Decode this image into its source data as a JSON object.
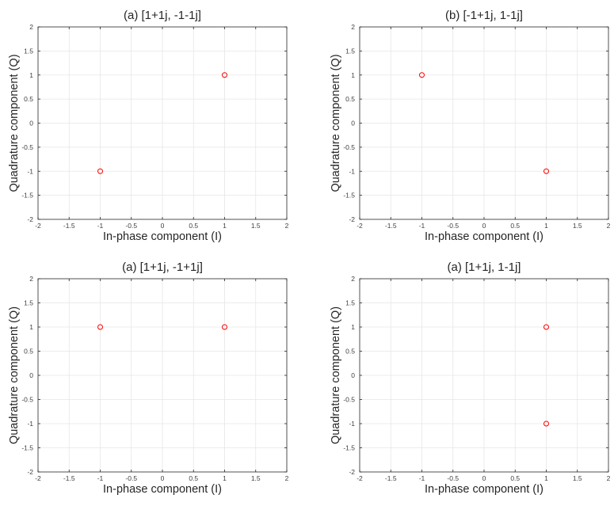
{
  "chart_data": [
    {
      "type": "scatter",
      "title": "(a) [1+1j, -1-1j]",
      "xlabel": "In-phase component (I)",
      "ylabel": "Quadrature component (Q)",
      "xlim": [
        -2,
        2
      ],
      "ylim": [
        -2,
        2
      ],
      "xticks": [
        "-2",
        "-1.5",
        "-1",
        "-0.5",
        "0",
        "0.5",
        "1",
        "1.5",
        "2"
      ],
      "yticks": [
        "2",
        "1.5",
        "1",
        "0.5",
        "0",
        "-0.5",
        "-1",
        "-1.5",
        "-2"
      ],
      "grid": true,
      "marker_color": "#ff0000",
      "points": [
        {
          "x": 1,
          "y": 1
        },
        {
          "x": -1,
          "y": -1
        }
      ]
    },
    {
      "type": "scatter",
      "title": "(b) [-1+1j, 1-1j]",
      "xlabel": "In-phase component (I)",
      "ylabel": "Quadrature component (Q)",
      "xlim": [
        -2,
        2
      ],
      "ylim": [
        -2,
        2
      ],
      "xticks": [
        "-2",
        "-1.5",
        "-1",
        "-0.5",
        "0",
        "0.5",
        "1",
        "1.5",
        "2"
      ],
      "yticks": [
        "2",
        "1.5",
        "1",
        "0.5",
        "0",
        "-0.5",
        "-1",
        "-1.5",
        "-2"
      ],
      "grid": true,
      "marker_color": "#ff0000",
      "points": [
        {
          "x": -1,
          "y": 1
        },
        {
          "x": 1,
          "y": -1
        }
      ]
    },
    {
      "type": "scatter",
      "title": "(a) [1+1j, -1+1j]",
      "xlabel": "In-phase component (I)",
      "ylabel": "Quadrature component (Q)",
      "xlim": [
        -2,
        2
      ],
      "ylim": [
        -2,
        2
      ],
      "xticks": [
        "-2",
        "-1.5",
        "-1",
        "-0.5",
        "0",
        "0.5",
        "1",
        "1.5",
        "2"
      ],
      "yticks": [
        "2",
        "1.5",
        "1",
        "0.5",
        "0",
        "-0.5",
        "-1",
        "-1.5",
        "-2"
      ],
      "grid": true,
      "marker_color": "#ff0000",
      "points": [
        {
          "x": 1,
          "y": 1
        },
        {
          "x": -1,
          "y": 1
        }
      ]
    },
    {
      "type": "scatter",
      "title": "(a) [1+1j, 1-1j]",
      "xlabel": "In-phase component (I)",
      "ylabel": "Quadrature component (Q)",
      "xlim": [
        -2,
        2
      ],
      "ylim": [
        -2,
        2
      ],
      "xticks": [
        "-2",
        "-1.5",
        "-1",
        "-0.5",
        "0",
        "0.5",
        "1",
        "1.5",
        "2"
      ],
      "yticks": [
        "2",
        "1.5",
        "1",
        "0.5",
        "0",
        "-0.5",
        "-1",
        "-1.5",
        "-2"
      ],
      "grid": true,
      "marker_color": "#ff0000",
      "points": [
        {
          "x": 1,
          "y": 1
        },
        {
          "x": 1,
          "y": -1
        }
      ]
    }
  ]
}
